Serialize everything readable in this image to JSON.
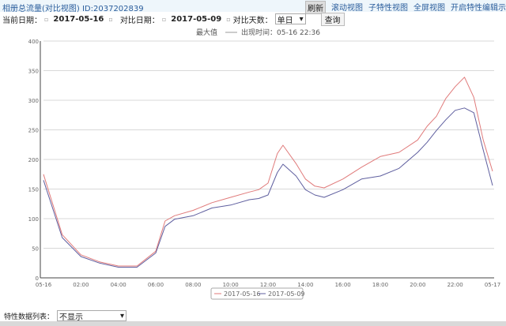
{
  "header": {
    "title": "相册总流量(对比视图) ID:2037202839",
    "links": [
      "刷新",
      "滚动视图",
      "子特性视图",
      "全屏视图",
      "开启特性编辑示"
    ]
  },
  "filters": {
    "current_label": "当前日期：",
    "current_date": "2017-05-16",
    "compare_label": "对比日期：",
    "compare_date": "2017-05-09",
    "days_label": "对比天数：",
    "days_value": "单日",
    "query": "查询"
  },
  "chart_data": {
    "type": "line",
    "subtitle_max": "最大值",
    "subtitle_time": "出现时间：05-16 22:36",
    "x_ticks": [
      "05-16",
      "02:00",
      "04:00",
      "06:00",
      "08:00",
      "10:00",
      "12:00",
      "14:00",
      "16:00",
      "18:00",
      "20:00",
      "22:00",
      "05-17"
    ],
    "ylim": [
      0,
      400
    ],
    "y_ticks": [
      0,
      50,
      100,
      150,
      200,
      250,
      300,
      350,
      400
    ],
    "grid": true,
    "legend_position": "bottom",
    "x_hours": [
      0,
      1,
      2,
      3,
      4,
      5,
      6,
      6.5,
      7,
      8,
      9,
      10,
      11,
      11.5,
      12,
      12.5,
      12.8,
      13.5,
      14,
      14.5,
      15,
      16,
      17,
      18,
      19,
      20,
      20.5,
      21,
      21.5,
      22,
      22.5,
      23,
      23.5,
      24
    ],
    "series": [
      {
        "name": "2017-05-16",
        "color": "#e07a7a",
        "values": [
          175,
          73,
          39,
          27,
          20,
          20,
          45,
          96,
          105,
          114,
          127,
          136,
          145,
          149,
          160,
          210,
          224,
          193,
          167,
          155,
          152,
          167,
          187,
          205,
          212,
          233,
          256,
          273,
          303,
          323,
          339,
          305,
          233,
          180
        ]
      },
      {
        "name": "2017-05-09",
        "color": "#5f5f9f",
        "values": [
          165,
          68,
          36,
          25,
          18,
          18,
          42,
          87,
          99,
          105,
          118,
          123,
          132,
          134,
          140,
          178,
          192,
          172,
          149,
          140,
          136,
          149,
          167,
          172,
          185,
          212,
          229,
          249,
          267,
          283,
          287,
          279,
          216,
          156
        ]
      }
    ]
  },
  "bottom": {
    "label": "特性数据列表：",
    "select_value": "不显示"
  }
}
